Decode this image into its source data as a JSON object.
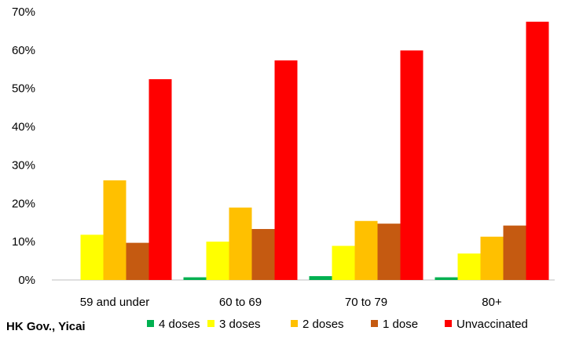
{
  "source_label": "HK Gov., Yicai",
  "chart_data": {
    "type": "bar",
    "categories": [
      "59 and under",
      "60 to 69",
      "70 to 79",
      "80+"
    ],
    "series": [
      {
        "name": "4 doses",
        "color": "#00b050",
        "values": [
          0,
          0.7,
          1.0,
          0.7
        ]
      },
      {
        "name": "3 doses",
        "color": "#ffff00",
        "values": [
          11.8,
          10.0,
          8.9,
          6.9
        ]
      },
      {
        "name": "2 doses",
        "color": "#ffc000",
        "values": [
          26.0,
          18.9,
          15.4,
          11.3
        ]
      },
      {
        "name": "1 dose",
        "color": "#c55a11",
        "values": [
          9.7,
          13.3,
          14.7,
          14.2
        ]
      },
      {
        "name": "Unvaccinated",
        "color": "#ff0000",
        "values": [
          52.4,
          57.3,
          59.9,
          67.4
        ]
      }
    ],
    "yticks": [
      "0%",
      "10%",
      "20%",
      "30%",
      "40%",
      "50%",
      "60%",
      "70%"
    ],
    "ylim": [
      0,
      70
    ],
    "grid": false,
    "legend_position": "bottom"
  }
}
